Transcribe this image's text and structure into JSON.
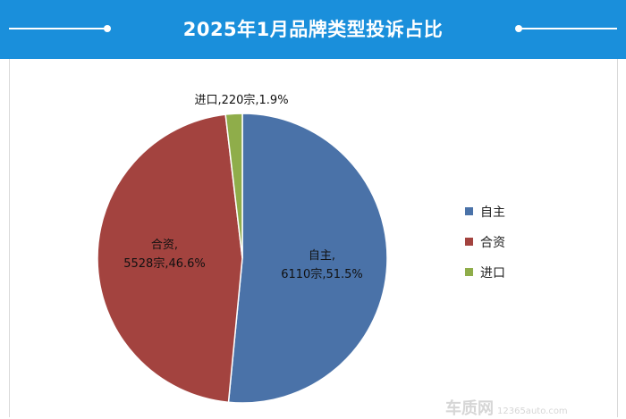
{
  "header": {
    "title": "2025年1月品牌类型投诉占比"
  },
  "chart_data": {
    "type": "pie",
    "title": "2025年1月品牌类型投诉占比",
    "categories": [
      "自主",
      "合资",
      "进口"
    ],
    "values": [
      6110,
      5528,
      220
    ],
    "percents": [
      51.5,
      46.6,
      1.9
    ],
    "unit": "宗",
    "colors": [
      "#4a72a8",
      "#a3433f",
      "#8fad4a"
    ],
    "legend_position": "right",
    "data_labels": [
      [
        "自主,",
        "6110宗,51.5%"
      ],
      [
        "合资,",
        "5528宗,46.6%"
      ],
      [
        "进口,220宗,1.9%"
      ]
    ]
  },
  "legend": {
    "items": [
      "自主",
      "合资",
      "进口"
    ]
  },
  "watermark": {
    "brand": "车质网",
    "url": "12365auto.com"
  }
}
